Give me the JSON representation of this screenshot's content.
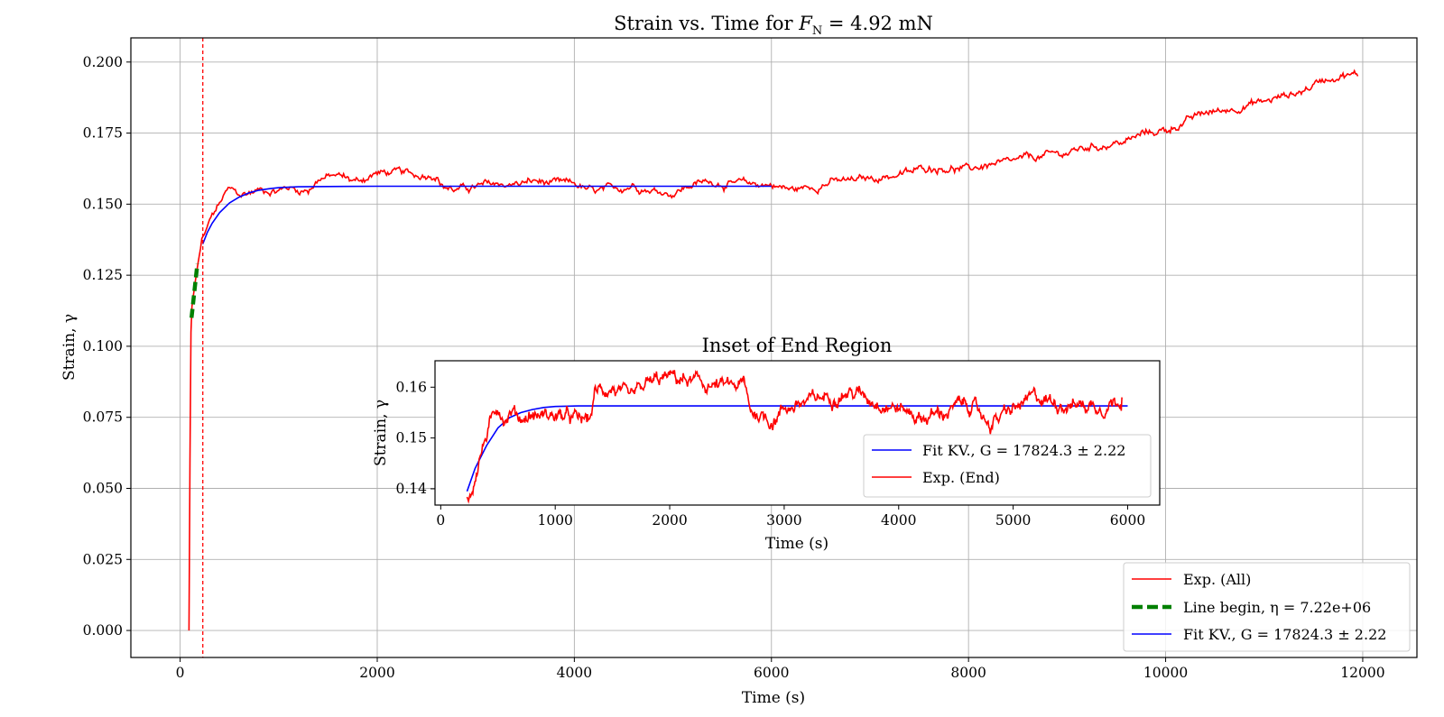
{
  "chart_data": [
    {
      "id": "main",
      "type": "line",
      "title": "Strain vs. Time for F_N = 4.92 mN",
      "xlabel": "Time (s)",
      "ylabel": "Strain, γ",
      "xlim": [
        -500,
        12550
      ],
      "ylim": [
        -0.0095,
        0.2085
      ],
      "xticks": [
        0,
        2000,
        4000,
        6000,
        8000,
        10000,
        12000
      ],
      "yticks": [
        "0.000",
        "0.025",
        "0.050",
        "0.075",
        "0.100",
        "0.125",
        "0.150",
        "0.175",
        "0.200"
      ],
      "grid": true,
      "legend_position": "lower-right",
      "vline_x": 230,
      "series": [
        {
          "name": "Exp. (All)",
          "color": "#ff0000",
          "style": "solid",
          "points": [
            [
              90,
              0.0
            ],
            [
              100,
              0.06
            ],
            [
              110,
              0.105
            ],
            [
              120,
              0.114
            ],
            [
              150,
              0.122
            ],
            [
              180,
              0.129
            ],
            [
              220,
              0.137
            ],
            [
              260,
              0.14
            ],
            [
              300,
              0.144
            ],
            [
              350,
              0.147
            ],
            [
              400,
              0.15
            ],
            [
              450,
              0.153
            ],
            [
              500,
              0.155
            ],
            [
              560,
              0.154
            ],
            [
              620,
              0.153
            ],
            [
              700,
              0.154
            ],
            [
              800,
              0.155
            ],
            [
              900,
              0.155
            ],
            [
              1000,
              0.155
            ],
            [
              1100,
              0.156
            ],
            [
              1200,
              0.155
            ],
            [
              1300,
              0.155
            ],
            [
              1400,
              0.159
            ],
            [
              1600,
              0.16
            ],
            [
              1800,
              0.158
            ],
            [
              2000,
              0.161
            ],
            [
              2200,
              0.161
            ],
            [
              2400,
              0.16
            ],
            [
              2600,
              0.161
            ],
            [
              2650,
              0.157
            ],
            [
              2800,
              0.155
            ],
            [
              3000,
              0.156
            ],
            [
              3200,
              0.157
            ],
            [
              3400,
              0.157
            ],
            [
              3600,
              0.158
            ],
            [
              3800,
              0.157
            ],
            [
              4000,
              0.157
            ],
            [
              4200,
              0.154
            ],
            [
              4400,
              0.155
            ],
            [
              4600,
              0.157
            ],
            [
              4800,
              0.155
            ],
            [
              5000,
              0.154
            ],
            [
              5200,
              0.157
            ],
            [
              5400,
              0.158
            ],
            [
              5600,
              0.157
            ],
            [
              5800,
              0.157
            ],
            [
              6000,
              0.157
            ],
            [
              6200,
              0.155
            ],
            [
              6400,
              0.156
            ],
            [
              6600,
              0.158
            ],
            [
              6800,
              0.158
            ],
            [
              7000,
              0.159
            ],
            [
              7200,
              0.16
            ],
            [
              7400,
              0.161
            ],
            [
              7600,
              0.163
            ],
            [
              7800,
              0.163
            ],
            [
              8000,
              0.162
            ],
            [
              8200,
              0.164
            ],
            [
              8400,
              0.164
            ],
            [
              8600,
              0.166
            ],
            [
              8800,
              0.167
            ],
            [
              9000,
              0.168
            ],
            [
              9200,
              0.17
            ],
            [
              9400,
              0.171
            ],
            [
              9600,
              0.172
            ],
            [
              9800,
              0.175
            ],
            [
              10000,
              0.176
            ],
            [
              10200,
              0.179
            ],
            [
              10400,
              0.182
            ],
            [
              10600,
              0.183
            ],
            [
              10800,
              0.185
            ],
            [
              11000,
              0.186
            ],
            [
              11200,
              0.188
            ],
            [
              11400,
              0.19
            ],
            [
              11600,
              0.194
            ],
            [
              11800,
              0.196
            ],
            [
              11950,
              0.195
            ]
          ]
        },
        {
          "name": "Line begin, η = 7.22e+06",
          "color": "#008000",
          "style": "dashed",
          "points": [
            [
              115,
              0.11
            ],
            [
              175,
              0.129
            ]
          ]
        },
        {
          "name": "Fit KV., G = 17824.3 ± 2.22",
          "color": "#0000ff",
          "style": "solid",
          "points": [
            [
              230,
              0.136
            ],
            [
              275,
              0.14
            ],
            [
              325,
              0.1433
            ],
            [
              400,
              0.147
            ],
            [
              500,
              0.1504
            ],
            [
              600,
              0.1525
            ],
            [
              700,
              0.154
            ],
            [
              800,
              0.1549
            ],
            [
              900,
              0.1554
            ],
            [
              1000,
              0.1558
            ],
            [
              1200,
              0.1561
            ],
            [
              1500,
              0.1562
            ],
            [
              2000,
              0.1563
            ],
            [
              3000,
              0.1563
            ],
            [
              4000,
              0.1563
            ],
            [
              5000,
              0.1563
            ],
            [
              6000,
              0.1563
            ]
          ]
        }
      ]
    },
    {
      "id": "inset",
      "type": "line",
      "title": "Inset of End Region",
      "xlabel": "Time (s)",
      "ylabel": "Strain, γ",
      "xlim": [
        -50,
        6280
      ],
      "ylim": [
        0.1368,
        0.1652
      ],
      "xticks": [
        0,
        1000,
        2000,
        3000,
        4000,
        5000,
        6000
      ],
      "yticks": [
        "0.14",
        "0.15",
        "0.16"
      ],
      "grid": false,
      "legend_position": "lower-right",
      "series": [
        {
          "name": "Fit KV., G = 17824.3 ± 2.22",
          "color": "#0000ff",
          "style": "solid",
          "points": [
            [
              230,
              0.1395
            ],
            [
              300,
              0.144
            ],
            [
              400,
              0.1485
            ],
            [
              500,
              0.152
            ],
            [
              600,
              0.154
            ],
            [
              700,
              0.155
            ],
            [
              800,
              0.1556
            ],
            [
              900,
              0.156
            ],
            [
              1000,
              0.1562
            ],
            [
              1200,
              0.1563
            ],
            [
              2000,
              0.1563
            ],
            [
              3000,
              0.1563
            ],
            [
              4000,
              0.1563
            ],
            [
              5000,
              0.1563
            ],
            [
              6000,
              0.1563
            ]
          ]
        },
        {
          "name": "Exp. (End)",
          "color": "#ff0000",
          "style": "solid",
          "points": [
            [
              230,
              0.1385
            ],
            [
              280,
              0.14
            ],
            [
              330,
              0.1455
            ],
            [
              400,
              0.1505
            ],
            [
              450,
              0.1535
            ],
            [
              500,
              0.1565
            ],
            [
              560,
              0.154
            ],
            [
              620,
              0.1555
            ],
            [
              700,
              0.154
            ],
            [
              800,
              0.1545
            ],
            [
              900,
              0.1545
            ],
            [
              1000,
              0.1545
            ],
            [
              1100,
              0.154
            ],
            [
              1200,
              0.1535
            ],
            [
              1300,
              0.1535
            ],
            [
              1350,
              0.159
            ],
            [
              1500,
              0.16
            ],
            [
              1650,
              0.157
            ],
            [
              1800,
              0.1605
            ],
            [
              2000,
              0.162
            ],
            [
              2100,
              0.1615
            ],
            [
              2300,
              0.1605
            ],
            [
              2500,
              0.16
            ],
            [
              2650,
              0.1605
            ],
            [
              2700,
              0.1555
            ],
            [
              2900,
              0.1535
            ],
            [
              3000,
              0.156
            ],
            [
              3200,
              0.157
            ],
            [
              3400,
              0.1585
            ],
            [
              3600,
              0.159
            ],
            [
              3800,
              0.1575
            ],
            [
              4000,
              0.156
            ],
            [
              4200,
              0.154
            ],
            [
              4400,
              0.155
            ],
            [
              4600,
              0.157
            ],
            [
              4800,
              0.153
            ],
            [
              5000,
              0.1555
            ],
            [
              5200,
              0.158
            ],
            [
              5400,
              0.157
            ],
            [
              5600,
              0.1565
            ],
            [
              5800,
              0.1565
            ],
            [
              5950,
              0.158
            ]
          ]
        }
      ]
    }
  ]
}
